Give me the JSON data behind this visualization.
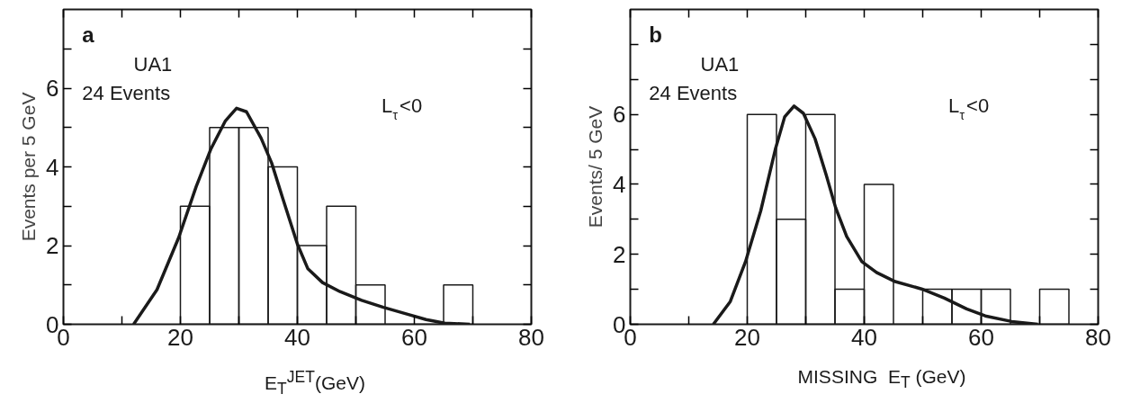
{
  "chart_data": [
    {
      "type": "histogram",
      "title": "a",
      "xlabel": "E$_{T}$$^{JET}$(GeV)",
      "ylabel": "Events per 5 GeV",
      "annotations": [
        "UA1",
        "24 Events",
        "L$_{τ}$<0"
      ],
      "bins": [
        20,
        25,
        30,
        35,
        40,
        45,
        50,
        55,
        60,
        65,
        70
      ],
      "values": [
        3,
        5,
        5,
        4,
        2,
        3,
        1,
        0,
        0,
        1
      ],
      "color": "#1a1a1a",
      "series": [
        {
          "type": "line",
          "color": "#1a1a1a",
          "x": [
            12,
            16,
            19.7,
            22.7,
            25.2,
            27.7,
            29.6,
            31.3,
            33.8,
            35.6,
            37.5,
            40,
            41.8,
            44.3,
            47.3,
            51,
            54.7,
            59,
            62,
            65.2,
            69.5
          ],
          "values": [
            0,
            0.88,
            2.2,
            3.5,
            4.45,
            5.17,
            5.49,
            5.4,
            4.73,
            4.1,
            3.2,
            2.04,
            1.41,
            1.06,
            0.83,
            0.61,
            0.43,
            0.25,
            0.12,
            0.03,
            0
          ]
        }
      ],
      "xlim": [
        0,
        80
      ],
      "ylim": [
        0,
        8
      ],
      "xticks": [
        0,
        {
          "value": 10,
          "label": null
        },
        20,
        {
          "value": 30,
          "label": null
        },
        40,
        {
          "value": 50,
          "label": null
        },
        60,
        {
          "value": 70,
          "label": null
        },
        80
      ],
      "yticks": [
        0,
        {
          "value": 1,
          "label": null
        },
        2,
        {
          "value": 3,
          "label": null
        },
        4,
        {
          "value": 5,
          "label": null
        },
        6,
        {
          "value": 7,
          "label": null
        }
      ]
    },
    {
      "type": "histogram",
      "title": "b",
      "xlabel": "MISSING  E$_{T}$ (GeV)",
      "ylabel": "Events/ 5 GeV",
      "annotations": [
        "UA1",
        "24 Events",
        "L$_{τ}$<0"
      ],
      "bins": [
        20,
        25,
        30,
        35,
        40,
        45,
        50,
        55,
        60,
        65,
        70,
        75
      ],
      "values": [
        6,
        3,
        6,
        1,
        4,
        0,
        1,
        1,
        1,
        0,
        1
      ],
      "color": "#1a1a1a",
      "series": [
        {
          "type": "line",
          "color": "#1a1a1a",
          "x": [
            14.2,
            17.1,
            19.7,
            22.3,
            24.8,
            26.4,
            28,
            29.6,
            31.6,
            33.5,
            35.1,
            37,
            39.6,
            42.1,
            45.3,
            49.8,
            53.7,
            57.5,
            60.7,
            65.2,
            69.7
          ],
          "values": [
            0,
            0.65,
            1.79,
            3.24,
            5.0,
            5.93,
            6.24,
            6.03,
            5.3,
            4.27,
            3.34,
            2.51,
            1.79,
            1.48,
            1.22,
            1.01,
            0.75,
            0.44,
            0.24,
            0.08,
            0
          ]
        }
      ],
      "xlim": [
        0,
        80
      ],
      "ylim": [
        0,
        9
      ],
      "xticks": [
        0,
        {
          "value": 10,
          "label": null
        },
        20,
        {
          "value": 30,
          "label": null
        },
        40,
        {
          "value": 50,
          "label": null
        },
        60,
        {
          "value": 70,
          "label": null
        },
        80
      ],
      "yticks": [
        0,
        {
          "value": 1,
          "label": null
        },
        2,
        {
          "value": 3,
          "label": null
        },
        4,
        {
          "value": 5,
          "label": null
        },
        6,
        {
          "value": 7,
          "label": null
        },
        {
          "value": 8,
          "label": null
        }
      ]
    }
  ]
}
